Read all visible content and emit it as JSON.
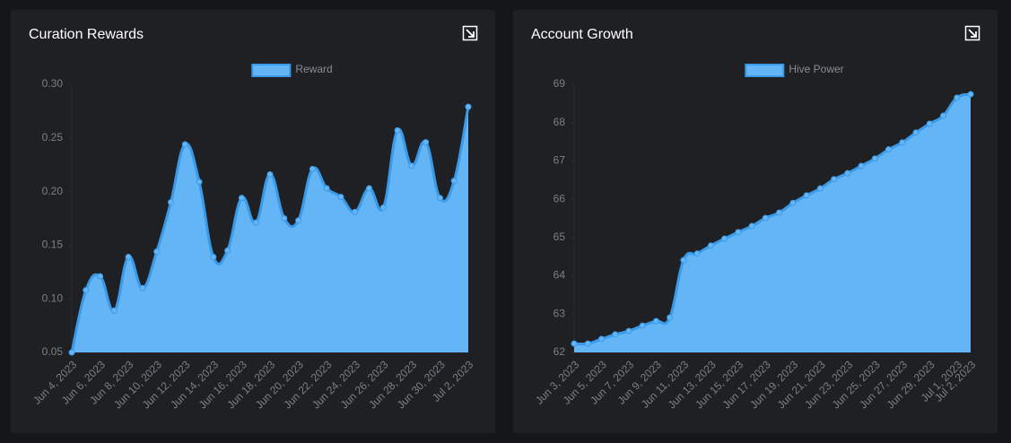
{
  "chart_data": [
    {
      "type": "line",
      "title": "Curation Rewards",
      "fill": true,
      "legend": "top",
      "categories": [
        "Jun 4, 2023",
        null,
        "Jun 6, 2023",
        null,
        "Jun 8, 2023",
        null,
        "Jun 10, 2023",
        null,
        "Jun 12, 2023",
        null,
        "Jun 14, 2023",
        null,
        "Jun 16, 2023",
        null,
        "Jun 18, 2023",
        null,
        "Jun 20, 2023",
        null,
        "Jun 22, 2023",
        null,
        "Jun 24, 2023",
        null,
        "Jun 26, 2023",
        null,
        "Jun 28, 2023",
        null,
        "Jun 30, 2023",
        null,
        "Jul 2, 2023"
      ],
      "series": [
        {
          "name": "Reward",
          "color": "#64b5f6",
          "values": [
            0.05,
            0.108,
            0.121,
            0.089,
            0.139,
            0.11,
            0.144,
            0.19,
            0.244,
            0.209,
            0.139,
            0.145,
            0.194,
            0.171,
            0.216,
            0.175,
            0.173,
            0.221,
            0.203,
            0.195,
            0.181,
            0.203,
            0.185,
            0.257,
            0.224,
            0.246,
            0.194,
            0.21,
            0.279
          ]
        }
      ],
      "ylim": [
        0.05,
        0.3
      ],
      "yticks": [
        0.05,
        {
          "value": 0.1,
          "label": "0.10"
        },
        0.15,
        {
          "value": 0.2,
          "label": "0.20"
        },
        0.25,
        {
          "value": 0.3,
          "label": "0.30"
        }
      ]
    },
    {
      "type": "line",
      "title": "Account Growth",
      "fill": true,
      "legend": "top",
      "categories": [
        "Jun 3, 2023",
        null,
        "Jun 5, 2023",
        null,
        "Jun 7, 2023",
        null,
        "Jun 9, 2023",
        null,
        "Jun 11, 2023",
        null,
        "Jun 13, 2023",
        null,
        "Jun 15, 2023",
        null,
        "Jun 17, 2023",
        null,
        "Jun 19, 2023",
        null,
        "Jun 21, 2023",
        null,
        "Jun 23, 2023",
        null,
        "Jun 25, 2023",
        null,
        "Jun 27, 2023",
        null,
        "Jun 29, 2023",
        null,
        "Jul 1, 2023",
        "Jul 2, 2023"
      ],
      "series": [
        {
          "name": "Hive Power",
          "color": "#64b5f6",
          "values": [
            62.23,
            62.23,
            62.35,
            62.47,
            62.56,
            62.7,
            62.82,
            62.91,
            64.41,
            64.58,
            64.79,
            64.97,
            65.14,
            65.3,
            65.51,
            65.65,
            65.9,
            66.1,
            66.28,
            66.52,
            66.68,
            66.87,
            67.06,
            67.3,
            67.48,
            67.74,
            67.97,
            68.18,
            68.65,
            68.74
          ]
        }
      ],
      "ylim": [
        62,
        69
      ],
      "yticks": [
        62,
        63,
        64,
        65,
        66,
        67,
        68,
        69
      ]
    }
  ]
}
